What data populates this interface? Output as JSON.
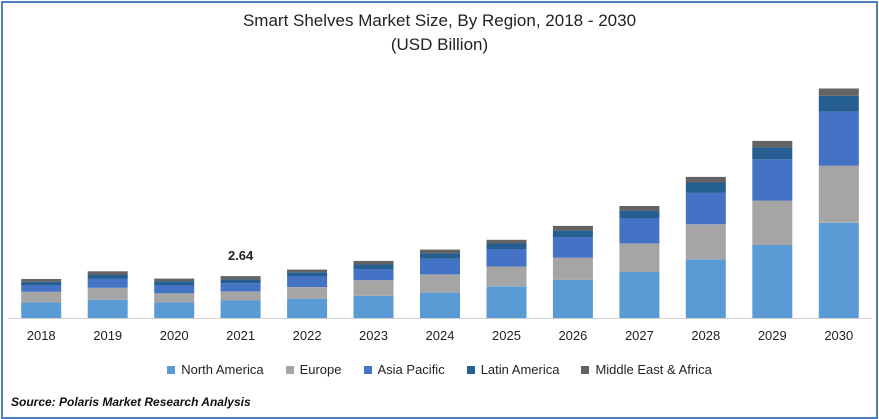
{
  "chart_data": {
    "type": "bar",
    "stacked": true,
    "title": "Smart Shelves Market Size, By Region, 2018 - 2030",
    "subtitle": "(USD Billion)",
    "categories": [
      "2018",
      "2019",
      "2020",
      "2021",
      "2022",
      "2023",
      "2024",
      "2025",
      "2026",
      "2027",
      "2028",
      "2029",
      "2030"
    ],
    "series": [
      {
        "name": "North America",
        "color": "#5b9bd5",
        "values": [
          0.98,
          1.15,
          0.98,
          1.1,
          1.2,
          1.4,
          1.6,
          2.0,
          2.4,
          2.9,
          3.7,
          4.6,
          6.0
        ]
      },
      {
        "name": "Europe",
        "color": "#a5a5a5",
        "values": [
          0.67,
          0.75,
          0.58,
          0.58,
          0.75,
          0.98,
          1.15,
          1.25,
          1.4,
          1.8,
          2.2,
          2.8,
          3.6
        ]
      },
      {
        "name": "Asia Pacific",
        "color": "#4472c4",
        "values": [
          0.41,
          0.58,
          0.52,
          0.52,
          0.7,
          0.7,
          0.98,
          1.1,
          1.3,
          1.6,
          2.0,
          2.6,
          3.4
        ]
      },
      {
        "name": "Latin America",
        "color": "#255e91",
        "values": [
          0.23,
          0.23,
          0.23,
          0.23,
          0.23,
          0.29,
          0.35,
          0.35,
          0.41,
          0.47,
          0.64,
          0.75,
          1.0
        ]
      },
      {
        "name": "Middle East & Africa",
        "color": "#636363",
        "values": [
          0.17,
          0.23,
          0.17,
          0.21,
          0.17,
          0.23,
          0.23,
          0.23,
          0.29,
          0.29,
          0.35,
          0.41,
          0.46
        ]
      }
    ],
    "annotations": [
      {
        "category": "2021",
        "text": "2.64"
      }
    ],
    "ylim": [
      0,
      15.5
    ],
    "grid": false,
    "legend_position": "bottom",
    "source": "Source: Polaris  Market Research Analysis"
  }
}
